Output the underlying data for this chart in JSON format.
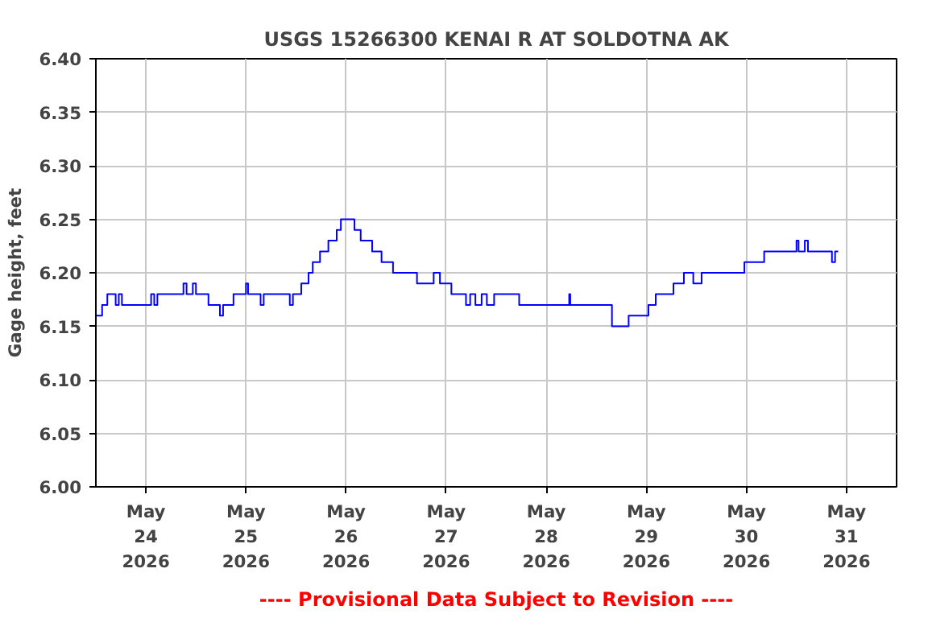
{
  "chart_data": {
    "type": "step",
    "title": "USGS 15266300 KENAI R AT SOLDOTNA AK",
    "ylabel": "Gage height, feet",
    "annotations": [
      "---- Provisional Data Subject to Revision ----"
    ],
    "x": [
      "2026-05-23T12:00",
      "2026-05-23T13:30",
      "2026-05-23T14:45",
      "2026-05-23T16:45",
      "2026-05-23T17:30",
      "2026-05-23T18:15",
      "2026-05-24T01:15",
      "2026-05-24T02:00",
      "2026-05-24T02:45",
      "2026-05-24T09:00",
      "2026-05-24T09:45",
      "2026-05-24T11:15",
      "2026-05-24T12:00",
      "2026-05-24T15:00",
      "2026-05-24T17:45",
      "2026-05-24T18:30",
      "2026-05-24T21:00",
      "2026-05-25T00:00",
      "2026-05-25T00:30",
      "2026-05-25T03:30",
      "2026-05-25T04:15",
      "2026-05-25T10:30",
      "2026-05-25T11:15",
      "2026-05-25T13:15",
      "2026-05-25T15:00",
      "2026-05-25T16:00",
      "2026-05-25T17:45",
      "2026-05-25T19:45",
      "2026-05-25T21:45",
      "2026-05-25T22:45",
      "2026-05-26T02:00",
      "2026-05-26T03:30",
      "2026-05-26T06:15",
      "2026-05-26T08:30",
      "2026-05-26T11:15",
      "2026-05-26T17:00",
      "2026-05-26T21:00",
      "2026-05-26T22:30",
      "2026-05-27T01:15",
      "2026-05-27T04:45",
      "2026-05-27T05:45",
      "2026-05-27T07:00",
      "2026-05-27T08:30",
      "2026-05-27T09:45",
      "2026-05-27T11:30",
      "2026-05-27T17:30",
      "2026-05-28T05:30",
      "2026-05-28T05:45",
      "2026-05-28T15:45",
      "2026-05-28T19:45",
      "2026-05-29T00:30",
      "2026-05-29T02:15",
      "2026-05-29T06:30",
      "2026-05-29T09:00",
      "2026-05-29T11:15",
      "2026-05-29T13:15",
      "2026-05-29T23:30",
      "2026-05-30T04:15",
      "2026-05-30T12:00",
      "2026-05-30T12:30",
      "2026-05-30T14:00",
      "2026-05-30T14:45",
      "2026-05-30T20:30",
      "2026-05-30T21:15",
      "2026-05-30T22:00"
    ],
    "series": [
      {
        "color": "#0000ff",
        "values": [
          6.16,
          6.17,
          6.18,
          6.17,
          6.18,
          6.17,
          6.18,
          6.17,
          6.18,
          6.19,
          6.18,
          6.19,
          6.18,
          6.17,
          6.16,
          6.17,
          6.18,
          6.19,
          6.18,
          6.17,
          6.18,
          6.17,
          6.18,
          6.19,
          6.2,
          6.21,
          6.22,
          6.23,
          6.24,
          6.25,
          6.24,
          6.23,
          6.22,
          6.21,
          6.2,
          6.19,
          6.2,
          6.19,
          6.18,
          6.17,
          6.18,
          6.17,
          6.18,
          6.17,
          6.18,
          6.17,
          6.18,
          6.17,
          6.15,
          6.16,
          6.17,
          6.18,
          6.19,
          6.2,
          6.19,
          6.2,
          6.21,
          6.22,
          6.23,
          6.22,
          6.23,
          6.22,
          6.21,
          6.22,
          6.22
        ]
      }
    ],
    "xlim": [
      "2026-05-23T12:00",
      "2026-05-31T12:00"
    ],
    "xticks": [
      {
        "value": "2026-05-24",
        "label": "May\n24\n2026"
      },
      {
        "value": "2026-05-25",
        "label": "May\n25\n2026"
      },
      {
        "value": "2026-05-26",
        "label": "May\n26\n2026"
      },
      {
        "value": "2026-05-27",
        "label": "May\n27\n2026"
      },
      {
        "value": "2026-05-28",
        "label": "May\n28\n2026"
      },
      {
        "value": "2026-05-29",
        "label": "May\n29\n2026"
      },
      {
        "value": "2026-05-30",
        "label": "May\n30\n2026"
      },
      {
        "value": "2026-05-31",
        "label": "May\n31\n2026"
      }
    ],
    "ylim": [
      6.0,
      6.4
    ],
    "yticks": [
      {
        "value": 6.0,
        "label": "6.00"
      },
      {
        "value": 6.05,
        "label": "6.05"
      },
      {
        "value": 6.1,
        "label": "6.10"
      },
      {
        "value": 6.15,
        "label": "6.15"
      },
      {
        "value": 6.2,
        "label": "6.20"
      },
      {
        "value": 6.25,
        "label": "6.25"
      },
      {
        "value": 6.3,
        "label": "6.30"
      },
      {
        "value": 6.35,
        "label": "6.35"
      },
      {
        "value": 6.4,
        "label": "6.40"
      }
    ],
    "grid": true
  }
}
